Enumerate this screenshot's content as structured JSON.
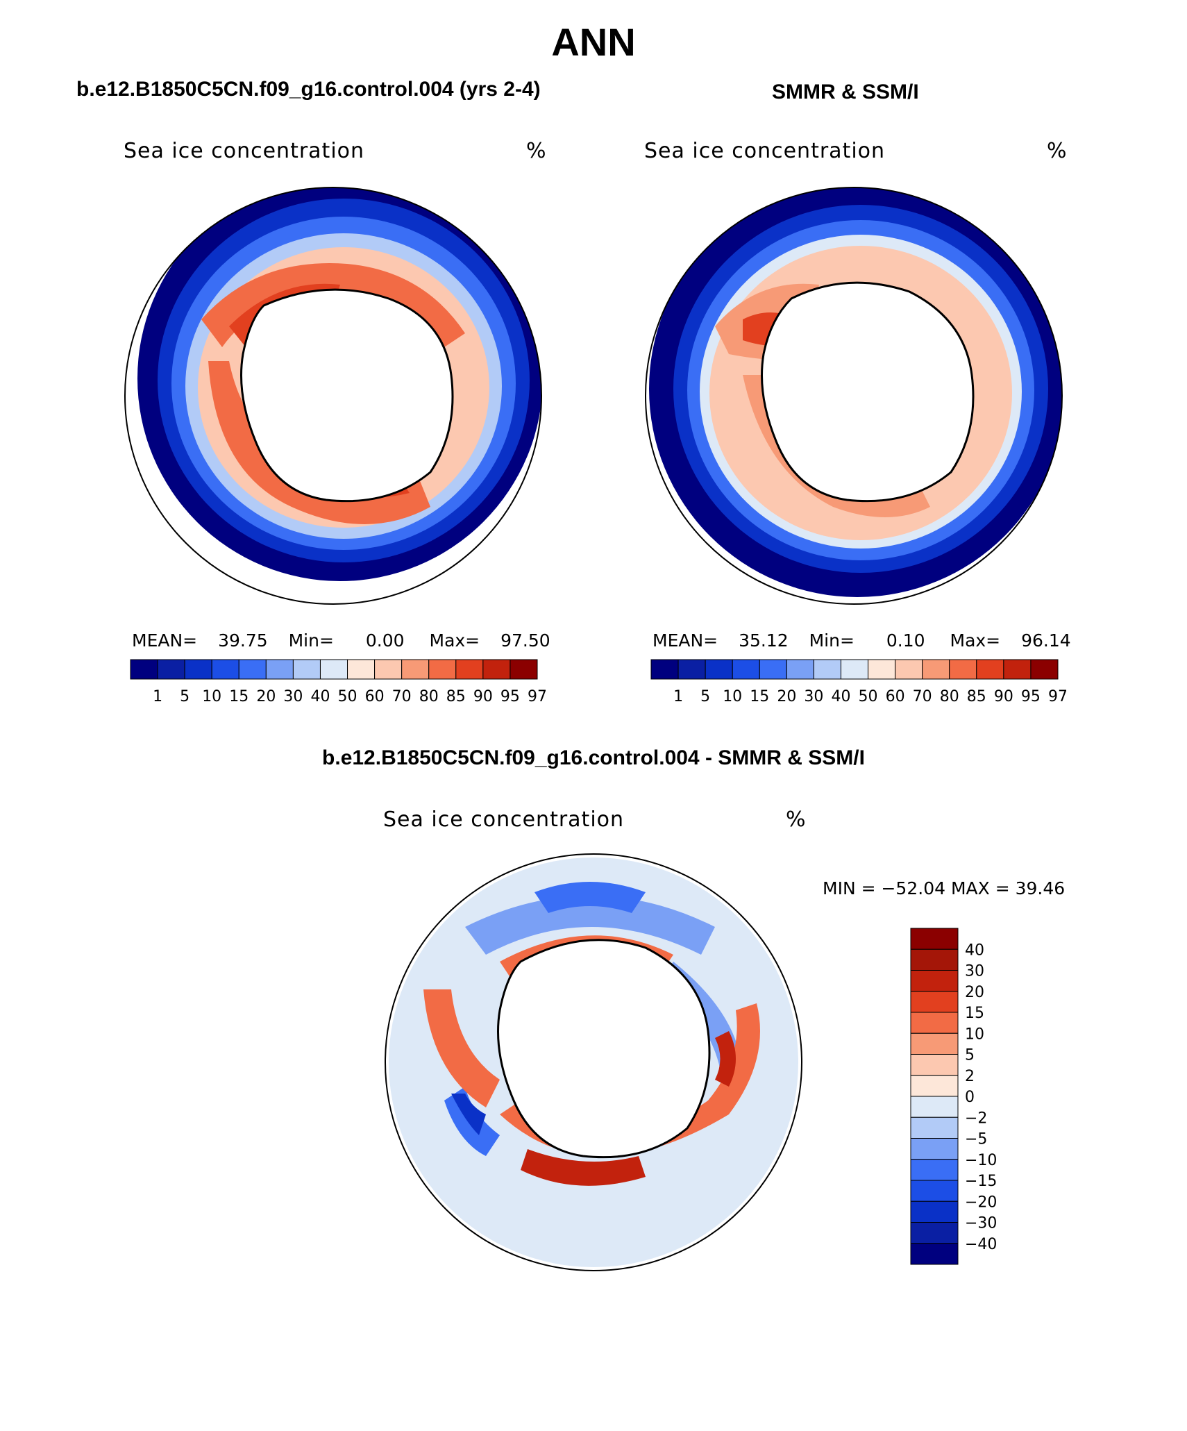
{
  "title": "ANN",
  "panels": [
    {
      "heading": "b.e12.B1850C5CN.f09_g16.control.004 (yrs 2-4)",
      "label": "Sea ice concentration",
      "units": "%",
      "stats": {
        "mean_label": "MEAN=",
        "mean": "39.75",
        "min_label": "Min=",
        "min": "0.00",
        "max_label": "Max=",
        "max": "97.50"
      }
    },
    {
      "heading": "SMMR & SSM/I",
      "label": "Sea ice concentration",
      "units": "%",
      "stats": {
        "mean_label": "MEAN=",
        "mean": "35.12",
        "min_label": "Min=",
        "min": "0.10",
        "max_label": "Max=",
        "max": "96.14"
      }
    }
  ],
  "diff": {
    "heading": "b.e12.B1850C5CN.f09_g16.control.004 - SMMR & SSM/I",
    "label": "Sea ice concentration",
    "units": "%",
    "min_text": "MIN = −52.04 MAX =   39.46"
  },
  "chart_data": [
    {
      "type": "heatmap",
      "title": "Sea ice concentration",
      "units": "%",
      "colorbar": {
        "levels": [
          "1",
          "5",
          "10",
          "15",
          "20",
          "30",
          "40",
          "50",
          "60",
          "70",
          "80",
          "85",
          "90",
          "95",
          "97"
        ],
        "colors": [
          "#00007f",
          "#0a1fa3",
          "#0a31c7",
          "#1c4ee6",
          "#3a6ef5",
          "#7aa0f5",
          "#b2cbf7",
          "#dde9f7",
          "#fde7d9",
          "#fcc8b0",
          "#f79a76",
          "#f26b45",
          "#e2401f",
          "#c2220d",
          "#8b0000"
        ]
      }
    },
    {
      "type": "heatmap",
      "title": "Sea ice concentration",
      "units": "%",
      "colorbar": {
        "levels": [
          "1",
          "5",
          "10",
          "15",
          "20",
          "30",
          "40",
          "50",
          "60",
          "70",
          "80",
          "85",
          "90",
          "95",
          "97"
        ],
        "colors": [
          "#00007f",
          "#0a1fa3",
          "#0a31c7",
          "#1c4ee6",
          "#3a6ef5",
          "#7aa0f5",
          "#b2cbf7",
          "#dde9f7",
          "#fde7d9",
          "#fcc8b0",
          "#f79a76",
          "#f26b45",
          "#e2401f",
          "#c2220d",
          "#8b0000"
        ]
      }
    },
    {
      "type": "heatmap",
      "title": "Sea ice concentration",
      "units": "%",
      "colorbar": {
        "levels": [
          "−40",
          "−30",
          "−20",
          "−15",
          "−10",
          "−5",
          "−2",
          "0",
          "2",
          "5",
          "10",
          "15",
          "20",
          "30",
          "40"
        ],
        "colors": [
          "#00007f",
          "#0a1fa3",
          "#0a31c7",
          "#1c4ee6",
          "#3a6ef5",
          "#7aa0f5",
          "#b2cbf7",
          "#dde9f7",
          "#fde7d9",
          "#fcc8b0",
          "#f79a76",
          "#f26b45",
          "#e2401f",
          "#c2220d",
          "#a41608",
          "#8b0000"
        ]
      }
    }
  ]
}
